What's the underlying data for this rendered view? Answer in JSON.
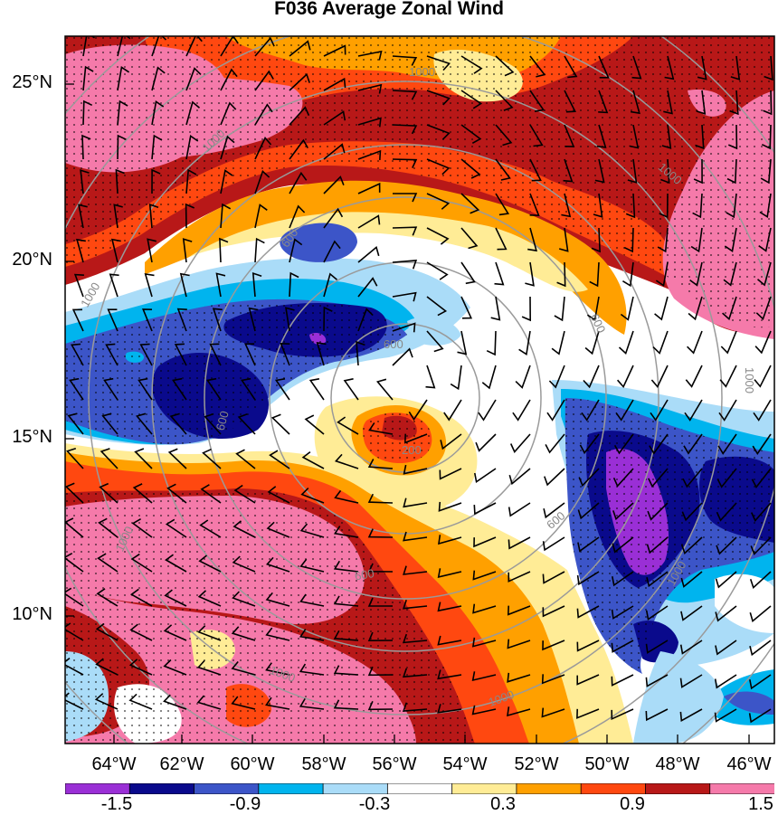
{
  "title": "F036 Average Zonal Wind",
  "lat_labels": [
    "25°N",
    "20°N",
    "15°N",
    "10°N"
  ],
  "lon_labels": [
    "64°W",
    "62°W",
    "60°W",
    "58°W",
    "56°W",
    "54°W",
    "52°W",
    "50°W",
    "48°W",
    "46°W"
  ],
  "colorbar": {
    "colors": [
      "#9a2fd6",
      "#0a0a8c",
      "#3c55c8",
      "#00b4ee",
      "#aadcf8",
      "#ffffff",
      "#ffec96",
      "#ffa000",
      "#ff4810",
      "#b81818",
      "#f57aaa"
    ],
    "labels": [
      "-1.5",
      "-0.9",
      "-0.3",
      "0.3",
      "0.9",
      "1.5"
    ]
  },
  "contour_labels": [
    "1000",
    "1000",
    "1000",
    "1000",
    "600",
    "600",
    "600",
    "600",
    "600",
    "600",
    "200",
    "1000",
    "1000",
    "1000"
  ]
}
